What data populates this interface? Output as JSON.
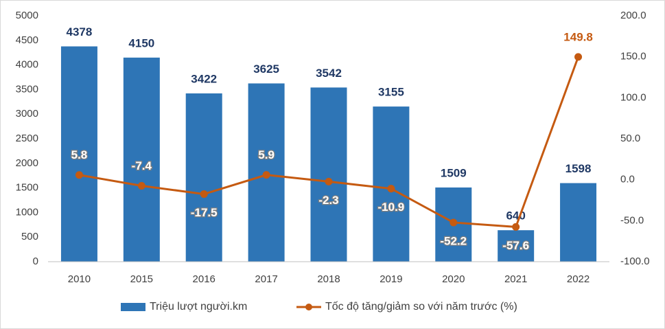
{
  "chart_data": {
    "type": "combo",
    "categories": [
      "2010",
      "2015",
      "2016",
      "2017",
      "2018",
      "2019",
      "2020",
      "2021",
      "2022"
    ],
    "series": [
      {
        "name": "Triệu lượt người.km",
        "type": "bar",
        "color": "#2e75b6",
        "values": [
          4378,
          4150,
          3422,
          3625,
          3542,
          3155,
          1509,
          640,
          1598
        ]
      },
      {
        "name": "Tốc độ tăng/giảm so với năm trước (%)",
        "type": "line",
        "color": "#c55a11",
        "axis": "y2",
        "values": [
          5.8,
          -7.4,
          -17.5,
          5.9,
          -2.3,
          -10.9,
          -52.2,
          -57.6,
          149.8
        ]
      }
    ],
    "ylim": [
      0,
      5000
    ],
    "yticks": [
      0,
      500,
      1000,
      1500,
      2000,
      2500,
      3000,
      3500,
      4000,
      4500,
      5000
    ],
    "y2lim": [
      -100,
      200
    ],
    "y2ticks": [
      {
        "value": -100,
        "label": "-100.0"
      },
      {
        "value": -50,
        "label": "-50.0"
      },
      {
        "value": 0,
        "label": "0.0"
      },
      {
        "value": 50,
        "label": "50.0"
      },
      {
        "value": 100,
        "label": "100.0"
      },
      {
        "value": 150,
        "label": "150.0"
      },
      {
        "value": 200,
        "label": "200.0"
      }
    ],
    "grid": false,
    "legend": "bottom"
  }
}
